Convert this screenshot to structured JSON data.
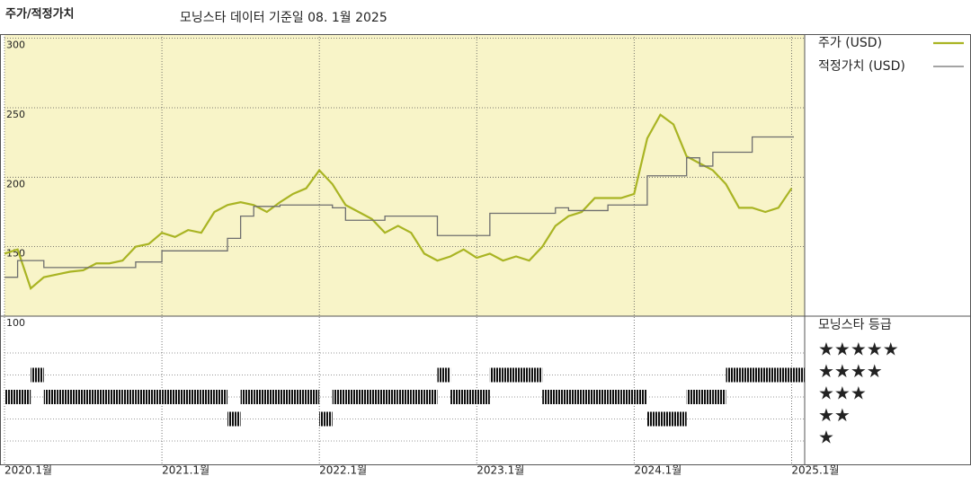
{
  "chart_data": {
    "type": "line",
    "title": "주가/적정가치",
    "subtitle": "모닝스타 데이터 기준일 08. 1월 2025",
    "x": [
      "2020-01",
      "2020-02",
      "2020-03",
      "2020-04",
      "2020-05",
      "2020-06",
      "2020-07",
      "2020-08",
      "2020-09",
      "2020-10",
      "2020-11",
      "2020-12",
      "2021-01",
      "2021-02",
      "2021-03",
      "2021-04",
      "2021-05",
      "2021-06",
      "2021-07",
      "2021-08",
      "2021-09",
      "2021-10",
      "2021-11",
      "2021-12",
      "2022-01",
      "2022-02",
      "2022-03",
      "2022-04",
      "2022-05",
      "2022-06",
      "2022-07",
      "2022-08",
      "2022-09",
      "2022-10",
      "2022-11",
      "2022-12",
      "2023-01",
      "2023-02",
      "2023-03",
      "2023-04",
      "2023-05",
      "2023-06",
      "2023-07",
      "2023-08",
      "2023-09",
      "2023-10",
      "2023-11",
      "2023-12",
      "2024-01",
      "2024-02",
      "2024-03",
      "2024-04",
      "2024-05",
      "2024-06",
      "2024-07",
      "2024-08",
      "2024-09",
      "2024-10",
      "2024-11",
      "2024-12",
      "2025-01"
    ],
    "xlim": [
      "2020-01",
      "2025-02"
    ],
    "xticks": [
      {
        "value": "2020-01",
        "label": "2020.1월"
      },
      {
        "value": "2021-01",
        "label": "2021.1월"
      },
      {
        "value": "2022-01",
        "label": "2022.1월"
      },
      {
        "value": "2023-01",
        "label": "2023.1월"
      },
      {
        "value": "2024-01",
        "label": "2024.1월"
      },
      {
        "value": "2025-01",
        "label": "2025.1월"
      }
    ],
    "ylim": [
      100,
      303
    ],
    "yticks": [
      100,
      150,
      200,
      250,
      300
    ],
    "grid": true,
    "series": [
      {
        "name": "주가 (USD)",
        "color": "#a9b423",
        "drawstyle": "line",
        "values": [
          145,
          148,
          120,
          128,
          130,
          132,
          133,
          138,
          138,
          140,
          150,
          152,
          160,
          157,
          162,
          160,
          175,
          180,
          182,
          180,
          175,
          182,
          188,
          192,
          205,
          195,
          180,
          175,
          170,
          160,
          165,
          160,
          145,
          140,
          143,
          148,
          142,
          145,
          140,
          143,
          140,
          150,
          165,
          172,
          175,
          185,
          185,
          185,
          188,
          228,
          245,
          238,
          215,
          210,
          205,
          195,
          178,
          178,
          175,
          178,
          192
        ]
      },
      {
        "name": "적정가치 (USD)",
        "color": "#6e6e6e",
        "drawstyle": "steps-post",
        "values": [
          128,
          140,
          140,
          135,
          135,
          135,
          135,
          135,
          135,
          135,
          139,
          139,
          147,
          147,
          147,
          147,
          147,
          156,
          172,
          179,
          179,
          180,
          180,
          180,
          180,
          178,
          169,
          169,
          169,
          172,
          172,
          172,
          172,
          158,
          158,
          158,
          158,
          174,
          174,
          174,
          174,
          174,
          178,
          176,
          176,
          176,
          180,
          180,
          180,
          201,
          201,
          201,
          214,
          208,
          218,
          218,
          218,
          229,
          229,
          229,
          229
        ]
      }
    ],
    "rating": {
      "title": "모닝스타 등급",
      "levels": [
        {
          "value": 5,
          "label": "★★★★★"
        },
        {
          "value": 4,
          "label": "★★★★"
        },
        {
          "value": 3,
          "label": "★★★"
        },
        {
          "value": 2,
          "label": "★★"
        },
        {
          "value": 1,
          "label": "★"
        }
      ],
      "values": [
        3,
        3,
        4,
        3,
        3,
        3,
        3,
        3,
        3,
        3,
        3,
        3,
        3,
        3,
        3,
        3,
        3,
        2,
        3,
        3,
        3,
        3,
        3,
        3,
        2,
        3,
        3,
        3,
        3,
        3,
        3,
        3,
        3,
        4,
        3,
        3,
        3,
        4,
        4,
        4,
        4,
        3,
        3,
        3,
        3,
        3,
        3,
        3,
        3,
        2,
        2,
        2,
        3,
        3,
        3,
        4,
        4,
        4,
        4,
        4,
        4
      ]
    }
  }
}
